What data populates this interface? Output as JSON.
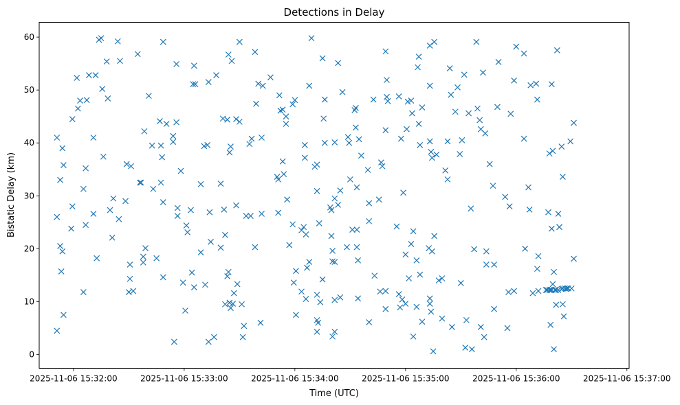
{
  "chart_data": {
    "type": "scatter",
    "title": "Detections in Delay",
    "xlabel": "Time (UTC)",
    "ylabel": "Bistatic Delay (km)",
    "marker": "x",
    "color": "#1f77b4",
    "xlim": [
      -0.31,
      5.02
    ],
    "ylim": [
      -2.6,
      62.8
    ],
    "xticks": [
      {
        "value": 0,
        "label": "2025-11-06 15:32:00"
      },
      {
        "value": 1,
        "label": "2025-11-06 15:33:00"
      },
      {
        "value": 2,
        "label": "2025-11-06 15:34:00"
      },
      {
        "value": 3,
        "label": "2025-11-06 15:35:00"
      },
      {
        "value": 4,
        "label": "2025-11-06 15:36:00"
      },
      {
        "value": 5,
        "label": "2025-11-06 15:37:00"
      }
    ],
    "yticks": [
      0,
      10,
      20,
      30,
      40,
      50,
      60
    ],
    "x_unit": "minutes after 15:32:00 UTC",
    "points": [
      [
        -0.15,
        41.0
      ],
      [
        -0.15,
        26.0
      ],
      [
        -0.15,
        4.5
      ],
      [
        -0.12,
        33.0
      ],
      [
        -0.12,
        20.5
      ],
      [
        -0.11,
        15.7
      ],
      [
        -0.1,
        39.0
      ],
      [
        -0.1,
        19.5
      ],
      [
        -0.09,
        35.8
      ],
      [
        -0.09,
        7.5
      ],
      [
        -0.01,
        44.5
      ],
      [
        -0.01,
        28.0
      ],
      [
        -0.02,
        23.8
      ],
      [
        0.03,
        52.3
      ],
      [
        0.04,
        46.5
      ],
      [
        0.06,
        48.0
      ],
      [
        0.09,
        31.3
      ],
      [
        0.09,
        11.8
      ],
      [
        0.11,
        35.2
      ],
      [
        0.11,
        24.5
      ],
      [
        0.12,
        48.1
      ],
      [
        0.14,
        52.8
      ],
      [
        0.18,
        41.0
      ],
      [
        0.18,
        26.6
      ],
      [
        0.2,
        52.8
      ],
      [
        0.21,
        18.2
      ],
      [
        0.23,
        59.5
      ],
      [
        0.25,
        59.8
      ],
      [
        0.26,
        50.2
      ],
      [
        0.27,
        37.4
      ],
      [
        0.3,
        55.4
      ],
      [
        0.31,
        48.4
      ],
      [
        0.33,
        27.3
      ],
      [
        0.35,
        22.1
      ],
      [
        0.36,
        29.5
      ],
      [
        0.4,
        59.2
      ],
      [
        0.41,
        25.6
      ],
      [
        0.42,
        55.5
      ],
      [
        0.47,
        29.0
      ],
      [
        0.48,
        36.0
      ],
      [
        0.5,
        11.8
      ],
      [
        0.51,
        17.0
      ],
      [
        0.51,
        14.3
      ],
      [
        0.52,
        35.6
      ],
      [
        0.54,
        12.0
      ],
      [
        0.58,
        56.8
      ],
      [
        0.6,
        32.5
      ],
      [
        0.61,
        32.5
      ],
      [
        0.63,
        18.5
      ],
      [
        0.63,
        17.4
      ],
      [
        0.64,
        42.2
      ],
      [
        0.65,
        20.1
      ],
      [
        0.68,
        48.9
      ],
      [
        0.71,
        39.5
      ],
      [
        0.72,
        31.3
      ],
      [
        0.75,
        18.2
      ],
      [
        0.78,
        44.1
      ],
      [
        0.79,
        39.5
      ],
      [
        0.79,
        32.5
      ],
      [
        0.8,
        37.3
      ],
      [
        0.81,
        59.1
      ],
      [
        0.81,
        28.8
      ],
      [
        0.81,
        14.6
      ],
      [
        0.84,
        43.6
      ],
      [
        0.9,
        41.3
      ],
      [
        0.9,
        40.2
      ],
      [
        0.91,
        2.4
      ],
      [
        0.93,
        54.9
      ],
      [
        0.93,
        43.9
      ],
      [
        0.94,
        27.7
      ],
      [
        0.94,
        26.2
      ],
      [
        0.97,
        34.7
      ],
      [
        0.99,
        13.6
      ],
      [
        1.01,
        8.3
      ],
      [
        1.02,
        24.4
      ],
      [
        1.03,
        23.1
      ],
      [
        1.06,
        27.3
      ],
      [
        1.07,
        15.5
      ],
      [
        1.08,
        51.1
      ],
      [
        1.09,
        54.6
      ],
      [
        1.09,
        12.7
      ],
      [
        1.1,
        51.1
      ],
      [
        1.15,
        32.2
      ],
      [
        1.15,
        19.3
      ],
      [
        1.18,
        39.4
      ],
      [
        1.19,
        13.2
      ],
      [
        1.21,
        39.6
      ],
      [
        1.22,
        51.5
      ],
      [
        1.23,
        26.9
      ],
      [
        1.24,
        21.3
      ],
      [
        1.22,
        2.4
      ],
      [
        1.27,
        3.3
      ],
      [
        1.29,
        52.8
      ],
      [
        1.33,
        32.3
      ],
      [
        1.33,
        20.2
      ],
      [
        1.35,
        44.6
      ],
      [
        1.36,
        27.4
      ],
      [
        1.37,
        22.6
      ],
      [
        1.37,
        9.5
      ],
      [
        1.39,
        44.4
      ],
      [
        1.39,
        14.8
      ],
      [
        1.4,
        56.7
      ],
      [
        1.4,
        15.6
      ],
      [
        1.41,
        38.2
      ],
      [
        1.41,
        9.8
      ],
      [
        1.42,
        39.3
      ],
      [
        1.42,
        8.8
      ],
      [
        1.43,
        55.5
      ],
      [
        1.44,
        9.6
      ],
      [
        1.45,
        11.6
      ],
      [
        1.47,
        28.2
      ],
      [
        1.47,
        44.5
      ],
      [
        1.48,
        13.3
      ],
      [
        1.5,
        59.1
      ],
      [
        1.5,
        44.0
      ],
      [
        1.52,
        9.5
      ],
      [
        1.53,
        3.3
      ],
      [
        1.54,
        5.4
      ],
      [
        1.56,
        26.2
      ],
      [
        1.59,
        39.8
      ],
      [
        1.6,
        26.2
      ],
      [
        1.61,
        40.8
      ],
      [
        1.64,
        57.2
      ],
      [
        1.64,
        20.3
      ],
      [
        1.65,
        47.4
      ],
      [
        1.67,
        51.2
      ],
      [
        1.69,
        6.0
      ],
      [
        1.7,
        41.0
      ],
      [
        1.7,
        26.6
      ],
      [
        1.71,
        50.8
      ],
      [
        1.78,
        52.4
      ],
      [
        1.84,
        33.6
      ],
      [
        1.85,
        26.8
      ],
      [
        1.85,
        33.1
      ],
      [
        1.86,
        49.0
      ],
      [
        1.87,
        46.1
      ],
      [
        1.89,
        46.3
      ],
      [
        1.89,
        36.5
      ],
      [
        1.9,
        34.1
      ],
      [
        1.92,
        45.0
      ],
      [
        1.92,
        43.6
      ],
      [
        1.93,
        29.3
      ],
      [
        1.95,
        20.7
      ],
      [
        1.98,
        47.3
      ],
      [
        1.98,
        24.6
      ],
      [
        1.99,
        13.6
      ],
      [
        2.0,
        48.1
      ],
      [
        2.01,
        15.8
      ],
      [
        2.01,
        7.5
      ],
      [
        2.06,
        11.9
      ],
      [
        2.06,
        23.5
      ],
      [
        2.08,
        24.1
      ],
      [
        2.09,
        39.6
      ],
      [
        2.09,
        37.2
      ],
      [
        2.1,
        22.7
      ],
      [
        2.1,
        10.5
      ],
      [
        2.11,
        16.4
      ],
      [
        2.13,
        17.5
      ],
      [
        2.13,
        50.8
      ],
      [
        2.15,
        59.8
      ],
      [
        2.18,
        35.5
      ],
      [
        2.2,
        35.9
      ],
      [
        2.2,
        30.9
      ],
      [
        2.2,
        11.3
      ],
      [
        2.2,
        6.5
      ],
      [
        2.2,
        4.3
      ],
      [
        2.21,
        6.0
      ],
      [
        2.22,
        24.8
      ],
      [
        2.23,
        9.9
      ],
      [
        2.25,
        14.2
      ],
      [
        2.25,
        56.0
      ],
      [
        2.26,
        44.6
      ],
      [
        2.27,
        40.0
      ],
      [
        2.27,
        48.2
      ],
      [
        2.32,
        27.8
      ],
      [
        2.33,
        27.3
      ],
      [
        2.33,
        22.4
      ],
      [
        2.34,
        19.6
      ],
      [
        2.34,
        17.6
      ],
      [
        2.34,
        3.4
      ],
      [
        2.36,
        40.1
      ],
      [
        2.36,
        29.5
      ],
      [
        2.36,
        17.5
      ],
      [
        2.36,
        4.3
      ],
      [
        2.36,
        10.3
      ],
      [
        2.39,
        55.1
      ],
      [
        2.39,
        28.3
      ],
      [
        2.41,
        31.0
      ],
      [
        2.41,
        10.8
      ],
      [
        2.43,
        49.6
      ],
      [
        2.47,
        20.3
      ],
      [
        2.48,
        41.1
      ],
      [
        2.49,
        40.0
      ],
      [
        2.5,
        33.1
      ],
      [
        2.52,
        23.6
      ],
      [
        2.54,
        46.2
      ],
      [
        2.55,
        46.6
      ],
      [
        2.55,
        42.9
      ],
      [
        2.56,
        23.6
      ],
      [
        2.56,
        20.3
      ],
      [
        2.56,
        31.6
      ],
      [
        2.57,
        17.8
      ],
      [
        2.57,
        10.6
      ],
      [
        2.58,
        40.7
      ],
      [
        2.6,
        37.6
      ],
      [
        2.66,
        34.9
      ],
      [
        2.67,
        25.2
      ],
      [
        2.67,
        28.6
      ],
      [
        2.67,
        6.1
      ],
      [
        2.71,
        48.2
      ],
      [
        2.72,
        14.9
      ],
      [
        2.76,
        29.3
      ],
      [
        2.77,
        11.9
      ],
      [
        2.78,
        36.3
      ],
      [
        2.79,
        35.6
      ],
      [
        2.82,
        57.3
      ],
      [
        2.82,
        42.4
      ],
      [
        2.82,
        12.0
      ],
      [
        2.82,
        8.6
      ],
      [
        2.83,
        51.9
      ],
      [
        2.83,
        48.7
      ],
      [
        2.84,
        47.9
      ],
      [
        2.92,
        24.2
      ],
      [
        2.94,
        48.8
      ],
      [
        2.94,
        11.4
      ],
      [
        2.95,
        8.9
      ],
      [
        2.96,
        40.8
      ],
      [
        2.97,
        10.4
      ],
      [
        2.98,
        30.6
      ],
      [
        3.0,
        18.9
      ],
      [
        3.0,
        9.6
      ],
      [
        3.01,
        42.6
      ],
      [
        3.02,
        47.8
      ],
      [
        3.03,
        14.4
      ],
      [
        3.05,
        48.0
      ],
      [
        3.05,
        20.9
      ],
      [
        3.06,
        45.6
      ],
      [
        3.07,
        23.3
      ],
      [
        3.07,
        3.4
      ],
      [
        3.1,
        17.8
      ],
      [
        3.1,
        9.0
      ],
      [
        3.11,
        54.3
      ],
      [
        3.12,
        56.3
      ],
      [
        3.12,
        43.6
      ],
      [
        3.13,
        39.6
      ],
      [
        3.13,
        15.1
      ],
      [
        3.15,
        46.7
      ],
      [
        3.15,
        6.2
      ],
      [
        3.21,
        20.1
      ],
      [
        3.22,
        58.4
      ],
      [
        3.22,
        50.8
      ],
      [
        3.22,
        40.3
      ],
      [
        3.22,
        10.6
      ],
      [
        3.22,
        9.6
      ],
      [
        3.23,
        8.1
      ],
      [
        3.23,
        38.3
      ],
      [
        3.24,
        19.5
      ],
      [
        3.24,
        37.2
      ],
      [
        3.26,
        59.1
      ],
      [
        3.25,
        0.6
      ],
      [
        3.26,
        22.4
      ],
      [
        3.28,
        37.8
      ],
      [
        3.3,
        14.0
      ],
      [
        3.33,
        14.4
      ],
      [
        3.33,
        6.8
      ],
      [
        3.36,
        34.8
      ],
      [
        3.38,
        40.3
      ],
      [
        3.38,
        33.1
      ],
      [
        3.4,
        54.1
      ],
      [
        3.41,
        49.1
      ],
      [
        3.42,
        5.2
      ],
      [
        3.45,
        45.9
      ],
      [
        3.47,
        50.5
      ],
      [
        3.49,
        37.9
      ],
      [
        3.5,
        13.5
      ],
      [
        3.51,
        40.5
      ],
      [
        3.53,
        52.9
      ],
      [
        3.55,
        6.5
      ],
      [
        3.54,
        1.3
      ],
      [
        3.57,
        45.6
      ],
      [
        3.59,
        27.6
      ],
      [
        3.6,
        1.0
      ],
      [
        3.62,
        19.9
      ],
      [
        3.64,
        59.1
      ],
      [
        3.65,
        46.5
      ],
      [
        3.67,
        44.3
      ],
      [
        3.68,
        42.6
      ],
      [
        3.68,
        5.2
      ],
      [
        3.7,
        53.3
      ],
      [
        3.71,
        3.3
      ],
      [
        3.72,
        41.8
      ],
      [
        3.73,
        19.5
      ],
      [
        3.73,
        17.0
      ],
      [
        3.76,
        36.0
      ],
      [
        3.79,
        31.9
      ],
      [
        3.8,
        17.0
      ],
      [
        3.8,
        8.6
      ],
      [
        3.83,
        46.8
      ],
      [
        3.84,
        55.3
      ],
      [
        3.9,
        29.8
      ],
      [
        3.92,
        5.0
      ],
      [
        3.93,
        11.8
      ],
      [
        3.94,
        28.0
      ],
      [
        3.95,
        45.5
      ],
      [
        3.98,
        51.8
      ],
      [
        3.98,
        12.0
      ],
      [
        4.0,
        58.2
      ],
      [
        4.07,
        56.9
      ],
      [
        4.07,
        40.8
      ],
      [
        4.08,
        20.0
      ],
      [
        4.11,
        31.6
      ],
      [
        4.12,
        27.4
      ],
      [
        4.13,
        50.9
      ],
      [
        4.15,
        11.6
      ],
      [
        4.18,
        51.2
      ],
      [
        4.19,
        48.2
      ],
      [
        4.19,
        16.2
      ],
      [
        4.2,
        18.6
      ],
      [
        4.2,
        12.0
      ],
      [
        4.27,
        12.2
      ],
      [
        4.28,
        12.2
      ],
      [
        4.29,
        26.9
      ],
      [
        4.3,
        12.2
      ],
      [
        4.3,
        38.0
      ],
      [
        4.31,
        5.6
      ],
      [
        4.31,
        12.2
      ],
      [
        4.32,
        12.2
      ],
      [
        4.32,
        51.1
      ],
      [
        4.32,
        23.8
      ],
      [
        4.33,
        13.3
      ],
      [
        4.33,
        38.5
      ],
      [
        4.34,
        15.6
      ],
      [
        4.34,
        1.0
      ],
      [
        4.35,
        12.2
      ],
      [
        4.36,
        12.2
      ],
      [
        4.36,
        9.4
      ],
      [
        4.37,
        57.5
      ],
      [
        4.38,
        26.6
      ],
      [
        4.38,
        12.2
      ],
      [
        4.39,
        24.1
      ],
      [
        4.39,
        24.1
      ],
      [
        4.41,
        12.4
      ],
      [
        4.41,
        39.3
      ],
      [
        4.42,
        33.6
      ],
      [
        4.42,
        9.5
      ],
      [
        4.42,
        12.5
      ],
      [
        4.43,
        7.2
      ],
      [
        4.44,
        12.5
      ],
      [
        4.45,
        12.4
      ],
      [
        4.46,
        12.5
      ],
      [
        4.47,
        12.5
      ],
      [
        4.49,
        40.3
      ],
      [
        4.5,
        12.5
      ],
      [
        4.52,
        18.1
      ],
      [
        4.52,
        43.8
      ]
    ]
  }
}
